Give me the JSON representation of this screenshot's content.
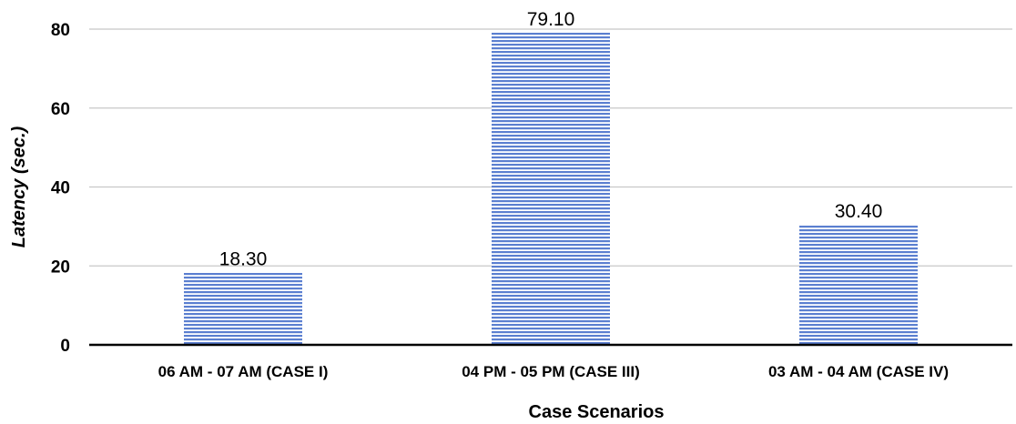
{
  "chart_data": {
    "type": "bar",
    "categories": [
      "06 AM - 07 AM (CASE I)",
      "04 PM - 05 PM (CASE III)",
      "03 AM - 04 AM (CASE IV)"
    ],
    "values": [
      18.3,
      79.1,
      30.4
    ],
    "data_labels": [
      "18.30",
      "79.10",
      "30.40"
    ],
    "title": "",
    "xlabel": "Case Scenarios",
    "ylabel": "Latency (sec.)",
    "ylim": [
      0,
      80
    ],
    "yticks": [
      "0",
      "20",
      "40",
      "60",
      "80"
    ],
    "grid": true,
    "legend": "none",
    "bar_color": "#4472c4"
  }
}
